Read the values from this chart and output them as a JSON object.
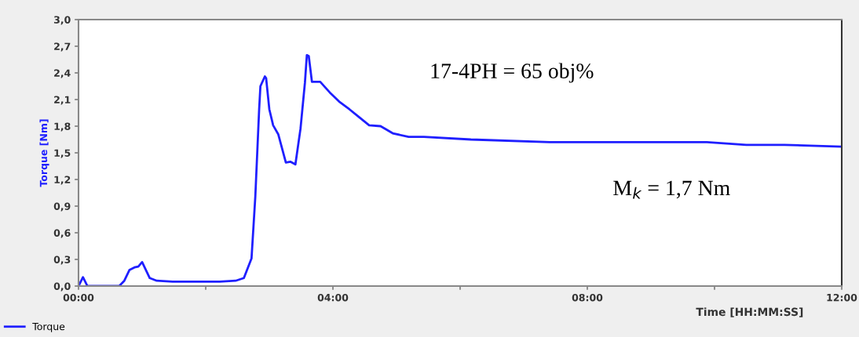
{
  "chart_data": {
    "type": "line",
    "xlabel": "Time [HH:MM:SS]",
    "ylabel": "Torque [Nm]",
    "x": [
      0,
      0.07,
      0.14,
      0.64,
      0.72,
      0.8,
      0.88,
      0.94,
      1.0,
      1.12,
      1.23,
      1.48,
      2.22,
      2.47,
      2.6,
      2.72,
      2.78,
      2.84,
      2.86,
      2.93,
      2.95,
      3.0,
      3.06,
      3.14,
      3.26,
      3.33,
      3.41,
      3.49,
      3.56,
      3.59,
      3.62,
      3.67,
      3.8,
      3.95,
      4.11,
      4.26,
      4.38,
      4.57,
      4.75,
      4.94,
      5.19,
      5.43,
      6.17,
      7.41,
      8.64,
      9.88,
      10.5,
      11.1,
      12
    ],
    "series": [
      {
        "name": "Torque",
        "color": "#1f1fff",
        "values": [
          0,
          0.1,
          0,
          0,
          0.06,
          0.18,
          0.21,
          0.22,
          0.27,
          0.09,
          0.06,
          0.05,
          0.05,
          0.06,
          0.09,
          0.31,
          1.01,
          1.99,
          2.25,
          2.36,
          2.34,
          1.99,
          1.81,
          1.71,
          1.39,
          1.4,
          1.37,
          1.77,
          2.29,
          2.6,
          2.59,
          2.3,
          2.3,
          2.18,
          2.07,
          1.99,
          1.92,
          1.81,
          1.8,
          1.72,
          1.68,
          1.68,
          1.65,
          1.62,
          1.62,
          1.62,
          1.59,
          1.59,
          1.57
        ]
      }
    ],
    "xlim": [
      0,
      12
    ],
    "xticks": [
      {
        "value": 0,
        "label": "00:00"
      },
      {
        "value": 2,
        "label": null
      },
      {
        "value": 4,
        "label": "04:00"
      },
      {
        "value": 6,
        "label": null
      },
      {
        "value": 8,
        "label": "08:00"
      },
      {
        "value": 10,
        "label": null
      },
      {
        "value": 12,
        "label": "12:00"
      }
    ],
    "ylim": [
      0,
      3.0
    ],
    "yticks": [
      {
        "value": 0,
        "label": "0,0"
      },
      {
        "value": 0.3,
        "label": "0,3"
      },
      {
        "value": 0.6,
        "label": "0,6"
      },
      {
        "value": 0.9,
        "label": "0,9"
      },
      {
        "value": 1.2,
        "label": "1,2"
      },
      {
        "value": 1.5,
        "label": "1,5"
      },
      {
        "value": 1.8,
        "label": "1,8"
      },
      {
        "value": 2.1,
        "label": "2,1"
      },
      {
        "value": 2.4,
        "label": "2,4"
      },
      {
        "value": 2.7,
        "label": "2,7"
      },
      {
        "value": 3.0,
        "label": "3,0"
      }
    ],
    "annotations": [
      {
        "text": "17-4PH = 65 obj%"
      },
      {
        "text": "M$_{k}$ = 1,7 Nm"
      }
    ],
    "grid": false,
    "legend": "bottom left",
    "marker": "none",
    "line_style": "solid"
  }
}
